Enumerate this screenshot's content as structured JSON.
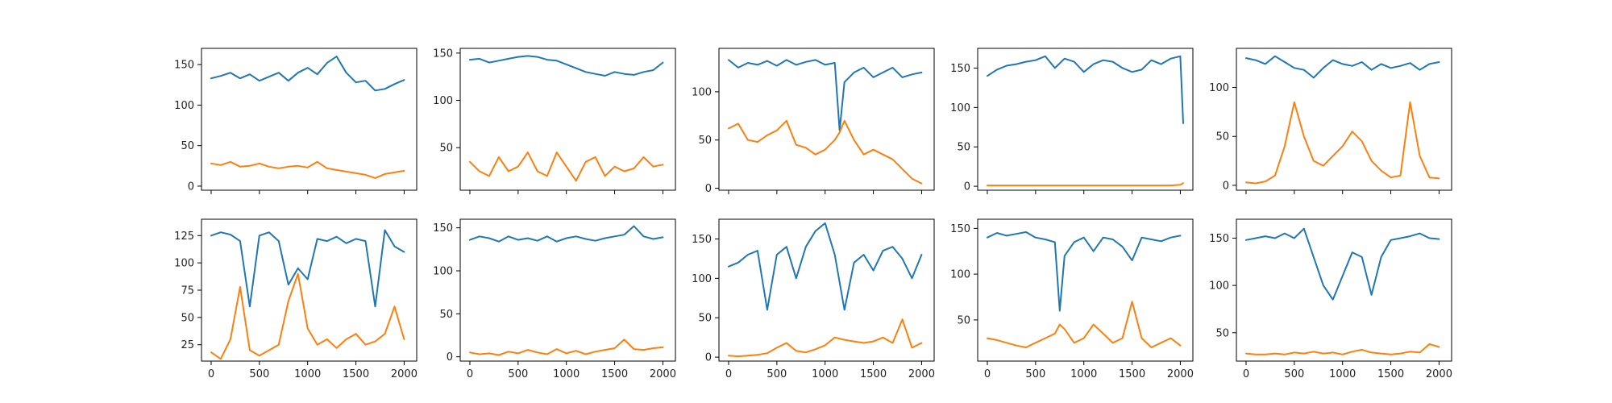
{
  "colors": {
    "series_a": "#1f77b4",
    "series_b": "#ff7f0e"
  },
  "chart_data": [
    {
      "type": "line",
      "ylim": [
        -5,
        170
      ],
      "yticks": [
        0,
        50,
        100,
        150
      ],
      "xlim": [
        -100,
        2130
      ],
      "xticks": [
        0,
        500,
        1000,
        1500,
        2000
      ],
      "show_x_tick_labels": false,
      "x": [
        0,
        100,
        200,
        300,
        400,
        500,
        600,
        700,
        800,
        900,
        1000,
        1100,
        1200,
        1300,
        1400,
        1500,
        1600,
        1700,
        1800,
        1900,
        2000
      ],
      "series": [
        {
          "color_key": "series_a",
          "values": [
            133,
            136,
            140,
            133,
            138,
            130,
            135,
            140,
            130,
            140,
            146,
            138,
            152,
            160,
            140,
            128,
            130,
            118,
            120,
            126,
            131
          ]
        },
        {
          "color_key": "series_b",
          "values": [
            28,
            26,
            30,
            24,
            25,
            28,
            24,
            22,
            24,
            25,
            23,
            30,
            22,
            20,
            18,
            16,
            14,
            10,
            15,
            17,
            19
          ]
        }
      ]
    },
    {
      "type": "line",
      "ylim": [
        5,
        155
      ],
      "yticks": [
        50,
        100,
        150
      ],
      "xlim": [
        -100,
        2130
      ],
      "xticks": [
        0,
        500,
        1000,
        1500,
        2000
      ],
      "show_x_tick_labels": false,
      "x": [
        0,
        100,
        200,
        300,
        400,
        500,
        600,
        700,
        800,
        900,
        1000,
        1100,
        1200,
        1300,
        1400,
        1500,
        1600,
        1700,
        1800,
        1900,
        2000
      ],
      "series": [
        {
          "color_key": "series_a",
          "values": [
            143,
            144,
            140,
            142,
            144,
            146,
            147,
            146,
            143,
            142,
            138,
            134,
            130,
            128,
            126,
            130,
            128,
            127,
            130,
            132,
            140
          ]
        },
        {
          "color_key": "series_b",
          "values": [
            35,
            25,
            20,
            40,
            25,
            30,
            45,
            25,
            20,
            45,
            30,
            15,
            35,
            40,
            20,
            30,
            25,
            28,
            40,
            30,
            32
          ]
        }
      ]
    },
    {
      "type": "line",
      "ylim": [
        -2,
        145
      ],
      "yticks": [
        0,
        50,
        100
      ],
      "xlim": [
        -100,
        2130
      ],
      "xticks": [
        0,
        500,
        1000,
        1500,
        2000
      ],
      "show_x_tick_labels": false,
      "x": [
        0,
        100,
        200,
        300,
        400,
        500,
        600,
        700,
        800,
        900,
        1000,
        1100,
        1150,
        1200,
        1300,
        1400,
        1500,
        1600,
        1700,
        1800,
        1900,
        2000
      ],
      "series": [
        {
          "color_key": "series_a",
          "values": [
            133,
            125,
            130,
            128,
            132,
            127,
            133,
            128,
            131,
            133,
            128,
            130,
            60,
            110,
            120,
            125,
            115,
            120,
            125,
            115,
            118,
            120
          ]
        },
        {
          "color_key": "series_b",
          "values": [
            62,
            67,
            50,
            48,
            55,
            60,
            70,
            45,
            42,
            35,
            40,
            50,
            58,
            70,
            50,
            35,
            40,
            35,
            30,
            20,
            10,
            5
          ]
        }
      ]
    },
    {
      "type": "line",
      "ylim": [
        -5,
        175
      ],
      "yticks": [
        0,
        50,
        100,
        150
      ],
      "xlim": [
        -100,
        2130
      ],
      "xticks": [
        0,
        500,
        1000,
        1500,
        2000
      ],
      "show_x_tick_labels": false,
      "x": [
        0,
        100,
        200,
        300,
        400,
        500,
        600,
        700,
        800,
        900,
        1000,
        1100,
        1200,
        1300,
        1400,
        1500,
        1600,
        1700,
        1800,
        1900,
        2000,
        2030
      ],
      "series": [
        {
          "color_key": "series_a",
          "values": [
            140,
            148,
            153,
            155,
            158,
            160,
            165,
            150,
            162,
            158,
            145,
            155,
            160,
            158,
            150,
            145,
            148,
            160,
            155,
            162,
            165,
            80
          ]
        },
        {
          "color_key": "series_b",
          "values": [
            1,
            1,
            1,
            1,
            1,
            1,
            1,
            1,
            1,
            1,
            1,
            1,
            1,
            1,
            1,
            1,
            1,
            1,
            1,
            1,
            2,
            4
          ]
        }
      ]
    },
    {
      "type": "line",
      "ylim": [
        -5,
        140
      ],
      "yticks": [
        0,
        50,
        100
      ],
      "xlim": [
        -100,
        2130
      ],
      "xticks": [
        0,
        500,
        1000,
        1500,
        2000
      ],
      "show_x_tick_labels": false,
      "x": [
        0,
        100,
        200,
        300,
        400,
        500,
        600,
        700,
        800,
        900,
        1000,
        1100,
        1200,
        1300,
        1400,
        1500,
        1600,
        1700,
        1800,
        1900,
        2000
      ],
      "series": [
        {
          "color_key": "series_a",
          "values": [
            130,
            128,
            124,
            132,
            126,
            120,
            118,
            110,
            120,
            128,
            124,
            122,
            126,
            118,
            124,
            120,
            122,
            125,
            118,
            124,
            126
          ]
        },
        {
          "color_key": "series_b",
          "values": [
            3,
            2,
            4,
            10,
            40,
            85,
            50,
            25,
            20,
            30,
            40,
            55,
            45,
            25,
            15,
            8,
            10,
            85,
            30,
            8,
            7
          ]
        }
      ]
    },
    {
      "type": "line",
      "ylim": [
        10,
        140
      ],
      "yticks": [
        25,
        50,
        75,
        100,
        125
      ],
      "xlim": [
        -100,
        2130
      ],
      "xticks": [
        0,
        500,
        1000,
        1500,
        2000
      ],
      "show_x_tick_labels": true,
      "x": [
        0,
        100,
        200,
        300,
        400,
        500,
        600,
        700,
        800,
        900,
        1000,
        1100,
        1200,
        1300,
        1400,
        1500,
        1600,
        1700,
        1800,
        1900,
        2000
      ],
      "series": [
        {
          "color_key": "series_a",
          "values": [
            125,
            128,
            126,
            120,
            60,
            125,
            128,
            120,
            80,
            95,
            85,
            122,
            120,
            124,
            118,
            122,
            120,
            60,
            130,
            115,
            110
          ]
        },
        {
          "color_key": "series_b",
          "values": [
            18,
            12,
            30,
            78,
            20,
            15,
            20,
            25,
            65,
            90,
            40,
            25,
            30,
            22,
            30,
            35,
            25,
            28,
            35,
            60,
            30
          ]
        }
      ]
    },
    {
      "type": "line",
      "ylim": [
        -5,
        160
      ],
      "yticks": [
        0,
        50,
        100,
        150
      ],
      "xlim": [
        -100,
        2130
      ],
      "xticks": [
        0,
        500,
        1000,
        1500,
        2000
      ],
      "show_x_tick_labels": true,
      "x": [
        0,
        100,
        200,
        300,
        400,
        500,
        600,
        700,
        800,
        900,
        1000,
        1100,
        1200,
        1300,
        1400,
        1500,
        1600,
        1700,
        1800,
        1900,
        2000
      ],
      "series": [
        {
          "color_key": "series_a",
          "values": [
            136,
            140,
            138,
            134,
            140,
            136,
            138,
            135,
            140,
            134,
            138,
            140,
            137,
            135,
            138,
            140,
            142,
            152,
            140,
            137,
            139
          ]
        },
        {
          "color_key": "series_b",
          "values": [
            5,
            3,
            4,
            2,
            6,
            4,
            8,
            5,
            3,
            9,
            4,
            7,
            3,
            6,
            8,
            10,
            20,
            9,
            8,
            10,
            11
          ]
        }
      ]
    },
    {
      "type": "line",
      "ylim": [
        -5,
        175
      ],
      "yticks": [
        0,
        50,
        100,
        150
      ],
      "xlim": [
        -100,
        2130
      ],
      "xticks": [
        0,
        500,
        1000,
        1500,
        2000
      ],
      "show_x_tick_labels": true,
      "x": [
        0,
        100,
        200,
        300,
        400,
        500,
        600,
        700,
        800,
        900,
        1000,
        1100,
        1200,
        1300,
        1400,
        1500,
        1600,
        1700,
        1800,
        1900,
        2000
      ],
      "series": [
        {
          "color_key": "series_a",
          "values": [
            115,
            120,
            130,
            135,
            60,
            130,
            140,
            100,
            140,
            160,
            170,
            130,
            60,
            120,
            130,
            110,
            135,
            140,
            125,
            100,
            130
          ]
        },
        {
          "color_key": "series_b",
          "values": [
            2,
            1,
            2,
            3,
            5,
            12,
            18,
            8,
            6,
            10,
            15,
            25,
            22,
            20,
            18,
            20,
            25,
            18,
            48,
            12,
            18
          ]
        }
      ]
    },
    {
      "type": "line",
      "ylim": [
        5,
        160
      ],
      "yticks": [
        50,
        100,
        150
      ],
      "xlim": [
        -100,
        2130
      ],
      "xticks": [
        0,
        500,
        1000,
        1500,
        2000
      ],
      "show_x_tick_labels": true,
      "x": [
        0,
        100,
        200,
        300,
        400,
        500,
        600,
        700,
        750,
        800,
        900,
        1000,
        1100,
        1200,
        1300,
        1400,
        1500,
        1600,
        1700,
        1800,
        1900,
        2000
      ],
      "series": [
        {
          "color_key": "series_a",
          "values": [
            140,
            145,
            142,
            144,
            146,
            140,
            138,
            135,
            60,
            120,
            135,
            140,
            125,
            140,
            138,
            130,
            115,
            140,
            138,
            136,
            140,
            142
          ]
        },
        {
          "color_key": "series_b",
          "values": [
            30,
            28,
            25,
            22,
            20,
            25,
            30,
            35,
            45,
            40,
            25,
            30,
            45,
            35,
            25,
            30,
            70,
            30,
            20,
            25,
            30,
            22
          ]
        }
      ]
    },
    {
      "type": "line",
      "ylim": [
        20,
        170
      ],
      "yticks": [
        50,
        100,
        150
      ],
      "xlim": [
        -100,
        2130
      ],
      "xticks": [
        0,
        500,
        1000,
        1500,
        2000
      ],
      "show_x_tick_labels": true,
      "x": [
        0,
        100,
        200,
        300,
        400,
        500,
        600,
        700,
        800,
        900,
        1000,
        1100,
        1200,
        1300,
        1400,
        1500,
        1600,
        1700,
        1800,
        1900,
        2000
      ],
      "series": [
        {
          "color_key": "series_a",
          "values": [
            148,
            150,
            152,
            150,
            155,
            150,
            160,
            130,
            100,
            85,
            110,
            135,
            130,
            90,
            130,
            148,
            150,
            152,
            155,
            150,
            149
          ]
        },
        {
          "color_key": "series_b",
          "values": [
            28,
            27,
            27,
            28,
            27,
            29,
            28,
            30,
            28,
            29,
            27,
            30,
            32,
            29,
            28,
            27,
            28,
            30,
            29,
            38,
            35
          ]
        }
      ]
    }
  ]
}
